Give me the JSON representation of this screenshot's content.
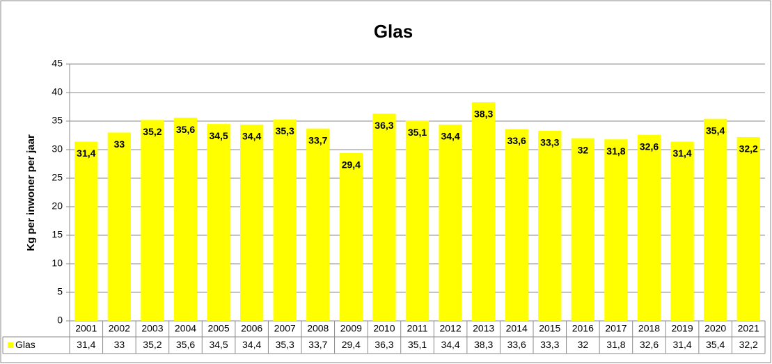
{
  "chart_data": {
    "type": "bar",
    "title": "Glas",
    "y_label": "Kg per inwoner per jaar",
    "categories": [
      "2001",
      "2002",
      "2003",
      "2004",
      "2005",
      "2006",
      "2007",
      "2008",
      "2009",
      "2010",
      "2011",
      "2012",
      "2013",
      "2014",
      "2015",
      "2016",
      "2017",
      "2018",
      "2019",
      "2020",
      "2021"
    ],
    "series": [
      {
        "name": "Glas",
        "color": "#ffff00",
        "values": [
          31.4,
          33,
          35.2,
          35.6,
          34.5,
          34.4,
          35.3,
          33.7,
          29.4,
          36.3,
          35.1,
          34.4,
          38.3,
          33.6,
          33.3,
          32,
          31.8,
          32.6,
          31.4,
          35.4,
          32.2
        ],
        "value_labels": [
          "31,4",
          "33",
          "35,2",
          "35,6",
          "34,5",
          "34,4",
          "35,3",
          "33,7",
          "29,4",
          "36,3",
          "35,1",
          "34,4",
          "38,3",
          "33,6",
          "33,3",
          "32",
          "31,8",
          "32,6",
          "31,4",
          "35,4",
          "32,2"
        ]
      }
    ],
    "ylim": [
      0,
      45
    ],
    "yticks": [
      0,
      5,
      10,
      15,
      20,
      25,
      30,
      35,
      40,
      45
    ],
    "grid": true
  }
}
